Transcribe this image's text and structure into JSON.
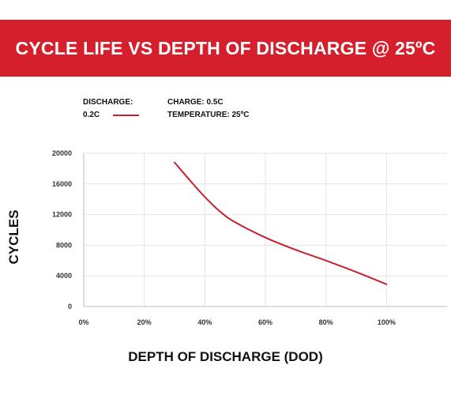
{
  "header": {
    "title": "CYCLE LIFE VS DEPTH OF DISCHARGE @ 25ºC"
  },
  "legend": {
    "discharge_label": "DISCHARGE:",
    "discharge_value": "0.2C",
    "charge_label": "CHARGE: 0.5C",
    "temperature_label": "TEMPERATURE: 25ºC"
  },
  "colors": {
    "banner": "#d51f2c",
    "line": "#c8202e",
    "grid": "#e3e3e3"
  },
  "chart_data": {
    "type": "line",
    "xlabel": "DEPTH OF DISCHARGE (DOD)",
    "ylabel": "CYCLES",
    "xlim": [
      0,
      120
    ],
    "ylim": [
      0,
      20000
    ],
    "x_ticks": [
      "0%",
      "20%",
      "40%",
      "60%",
      "80%",
      "100%"
    ],
    "y_ticks": [
      "0",
      "4000",
      "8000",
      "12000",
      "16000",
      "20000"
    ],
    "grid": true,
    "series": [
      {
        "name": "0.2C",
        "x": [
          30,
          35,
          40,
          45,
          50,
          60,
          70,
          80,
          90,
          100
        ],
        "y": [
          18800,
          16500,
          14300,
          12400,
          11000,
          9000,
          7400,
          6000,
          4500,
          2900
        ]
      }
    ]
  }
}
